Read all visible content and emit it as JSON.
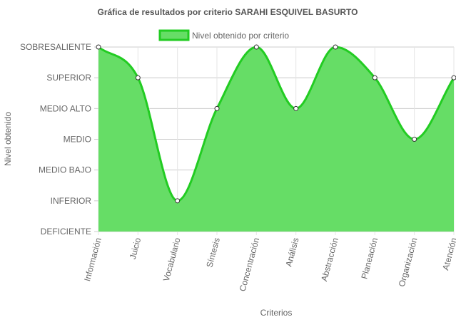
{
  "colors": {
    "fill": "#66dd66",
    "line": "#22cc22",
    "point_fill": "#ffffff",
    "point_stroke": "#333333",
    "grid": "#e5e5e5",
    "grid_strong": "#cccccc",
    "text": "#666666"
  },
  "chart_data": {
    "type": "area",
    "title": "Gráfica de resultados por criterio SARAHI ESQUIVEL BASURTO",
    "xlabel": "Criterios",
    "ylabel": "Nivel obtenido",
    "legend": {
      "position": "top",
      "entries": [
        "Nivel obtenido por criterio"
      ]
    },
    "y_levels": [
      "DEFICIENTE",
      "INFERIOR",
      "MEDIO BAJO",
      "MEDIO",
      "MEDIO ALTO",
      "SUPERIOR",
      "SOBRESALIENTE"
    ],
    "ylim": [
      0,
      6
    ],
    "grid": true,
    "categories": [
      "Información",
      "Juicio",
      "Vocabulario",
      "Síntesis",
      "Concentración",
      "Análisis",
      "Abstracción",
      "Planeación",
      "Organización",
      "Atención"
    ],
    "series": [
      {
        "name": "Nivel obtenido por criterio",
        "values": [
          6,
          5,
          1,
          4,
          6,
          4,
          6,
          5,
          3,
          5
        ]
      }
    ]
  }
}
